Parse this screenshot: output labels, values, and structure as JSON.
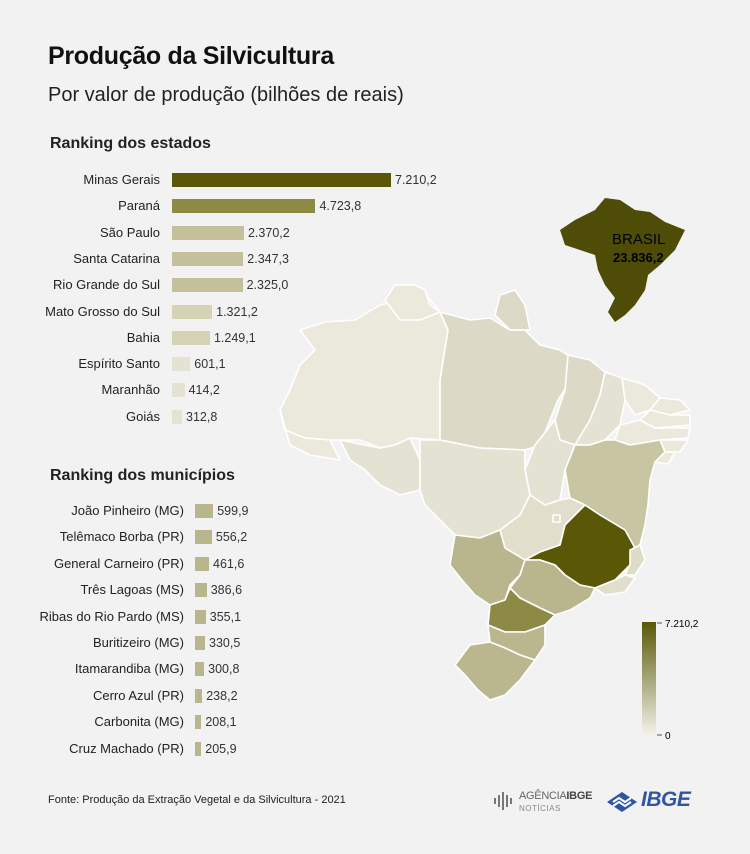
{
  "title": "Produção da Silvicultura",
  "subtitle": "Por valor de produção (bilhões de reais)",
  "source": "Fonte: Produção da Extração Vegetal e da Silvicultura - 2021",
  "colors": {
    "dark": "#5a5806",
    "mid": "#8c8a45",
    "light": "#c4c19a",
    "pale": "#dcdac6",
    "palest": "#ebe9dc",
    "background": "#f2f2f2"
  },
  "chart_data": [
    {
      "type": "bar",
      "orientation": "horizontal",
      "title": "Ranking dos estados",
      "categories": [
        "Minas Gerais",
        "Paraná",
        "São Paulo",
        "Santa Catarina",
        "Rio Grande do Sul",
        "Mato Grosso do Sul",
        "Bahia",
        "Espírito Santo",
        "Maranhão",
        "Goiás"
      ],
      "values": [
        7210.2,
        4723.8,
        2370.2,
        2347.3,
        2325.0,
        1321.2,
        1249.1,
        601.1,
        414.2,
        312.8
      ],
      "value_labels": [
        "7.210,2",
        "4.723,8",
        "2.370,2",
        "2.347,3",
        "2.325,0",
        "1.321,2",
        "1.249,1",
        "601,1",
        "414,2",
        "312,8"
      ],
      "xlim": [
        0,
        7210.2
      ]
    },
    {
      "type": "bar",
      "orientation": "horizontal",
      "title": "Ranking dos municípios",
      "categories": [
        "João Pinheiro (MG)",
        "Telêmaco Borba (PR)",
        "General Carneiro (PR)",
        "Três Lagoas (MS)",
        "Ribas do Rio Pardo (MS)",
        "Buritizeiro (MG)",
        "Itamarandiba (MG)",
        "Cerro Azul (PR)",
        "Carbonita (MG)",
        "Cruz Machado (PR)"
      ],
      "values": [
        599.9,
        556.2,
        461.6,
        386.6,
        355.1,
        330.5,
        300.8,
        238.2,
        208.1,
        205.9
      ],
      "value_labels": [
        "599,9",
        "556,2",
        "461,6",
        "386,6",
        "355,1",
        "330,5",
        "300,8",
        "238,2",
        "208,1",
        "205,9"
      ],
      "xlim": [
        0,
        7210.2
      ]
    }
  ],
  "map": {
    "brasil_label": "BRASIL",
    "brasil_value": "23.836,2",
    "legend_max_label": "7.210,2",
    "legend_min_label": "0",
    "legend_range": [
      0,
      7210.2
    ]
  },
  "logos": {
    "agencia_prefix": "AGÊNCIA",
    "agencia_ibge": "IBGE",
    "agencia_sub": "NOTÍCIAS",
    "ibge": "IBGE"
  }
}
